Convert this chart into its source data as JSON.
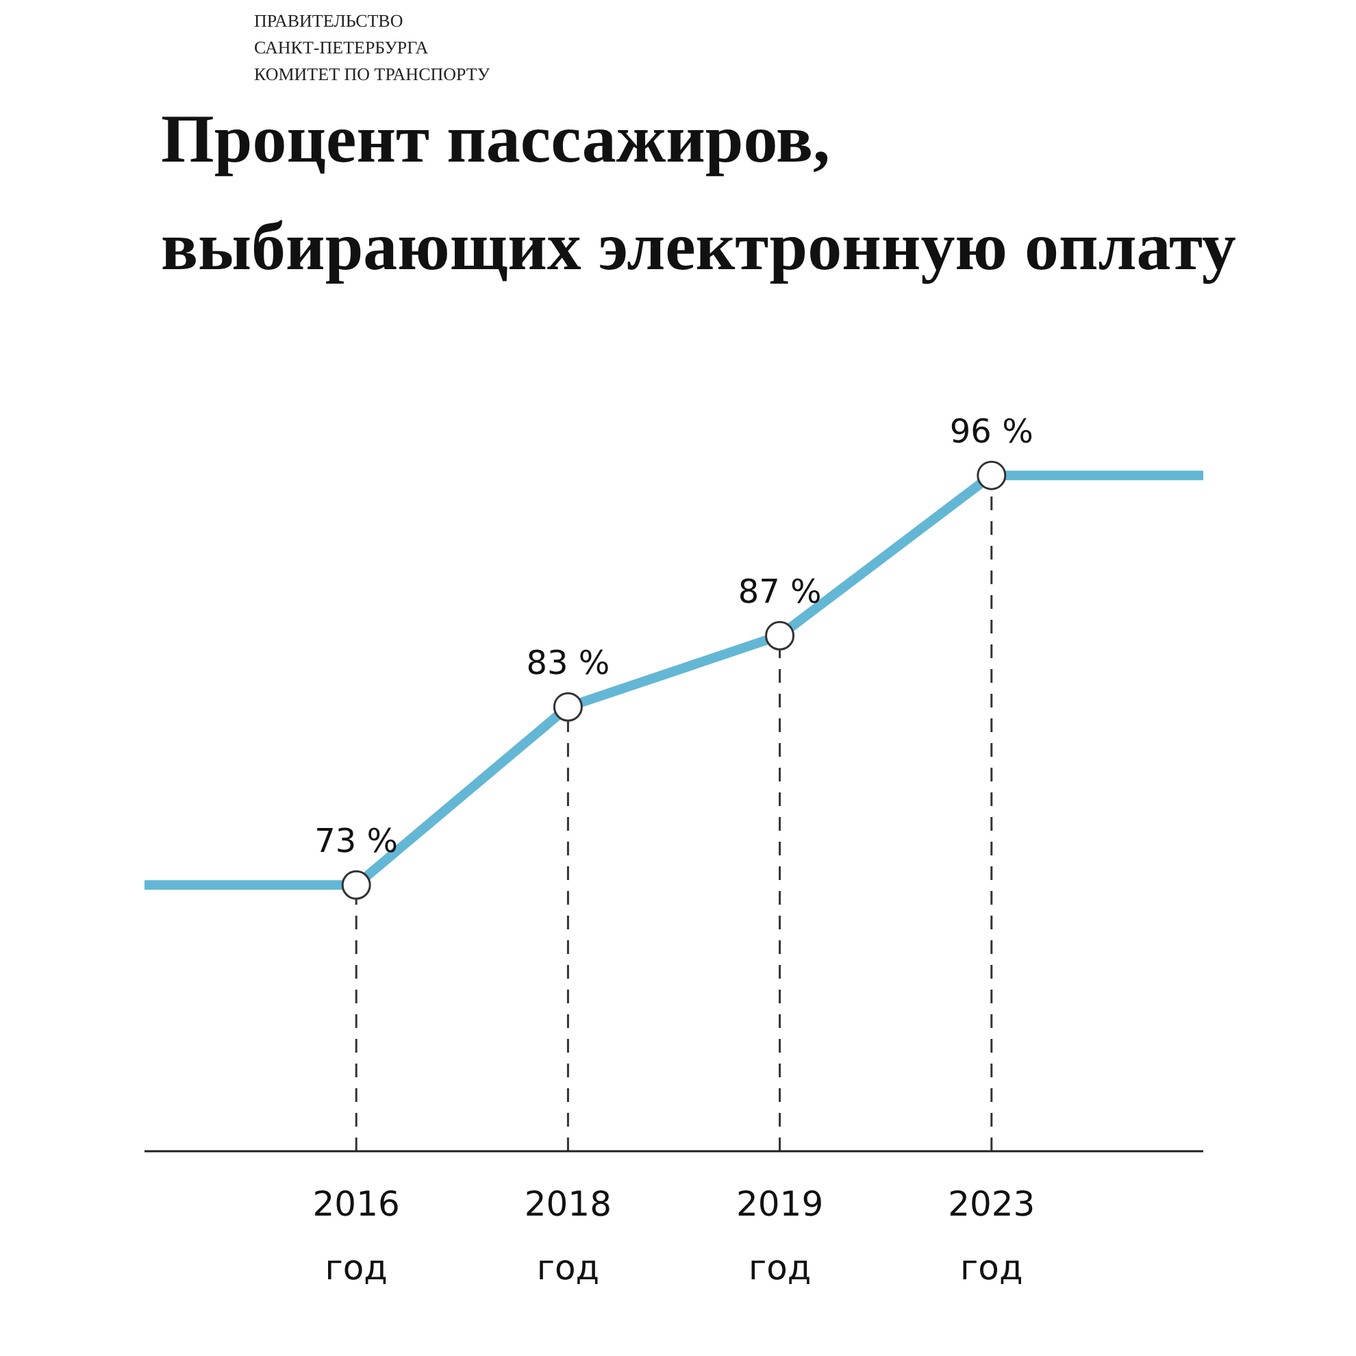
{
  "chart_data": {
    "type": "line",
    "title": "Процент пассажиров,\nвыбирающих электронную оплату",
    "annotations": [
      "ПРАВИТЕЛЬСТВО\nСАНКТ-ПЕТЕРБУРГА\nКОМИТЕТ ПО ТРАНСПОРТУ"
    ],
    "categories": [
      null,
      "2016\nгод",
      "2018\nгод",
      "2019\nгод",
      "2023\nгод",
      null
    ],
    "series": [
      {
        "color": "#63b7d5",
        "values": [
          73,
          73,
          83,
          87,
          96,
          96
        ],
        "value_labels": [
          null,
          "73 %",
          "83 %",
          "87 %",
          "96 %",
          null
        ]
      }
    ],
    "marker": "circle",
    "line_style": "solid",
    "grid": "x",
    "tick_labels": "x"
  }
}
